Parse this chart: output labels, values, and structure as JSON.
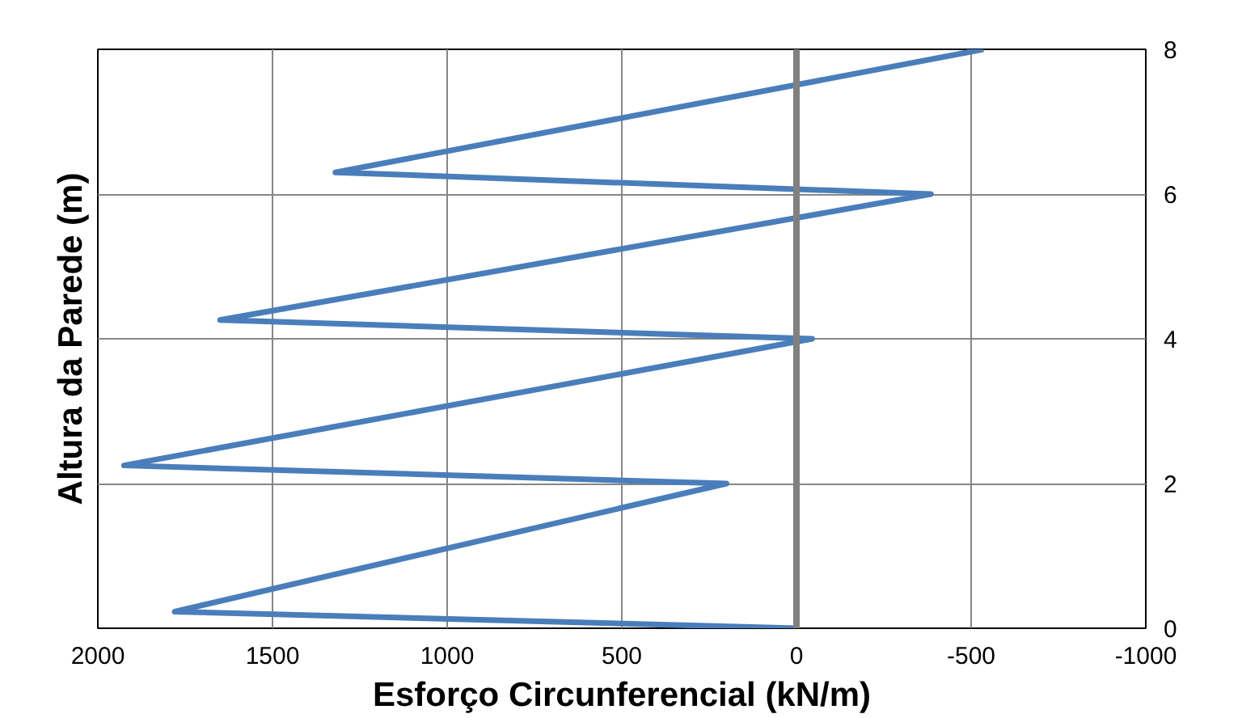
{
  "chart_data": {
    "type": "line",
    "xlabel": "Esforço Circunferencial (kN/m)",
    "ylabel": "Altura da Parede (m)",
    "x": [
      0,
      1780,
      200,
      1925,
      -45,
      1650,
      -385,
      1320,
      -535
    ],
    "series": [
      {
        "color": "#4a7ebb",
        "values": [
          0,
          0.23,
          2,
          2.25,
          4,
          4.26,
          6,
          6.3,
          8
        ]
      }
    ],
    "xlim": [
      2000,
      -1000
    ],
    "xticks": [
      2000,
      1500,
      1000,
      500,
      0,
      -500,
      -1000
    ],
    "ylim": [
      0,
      8
    ],
    "yticks": [
      0,
      2,
      4,
      6,
      8
    ],
    "grid": true,
    "marker": "none",
    "line_style": "solid",
    "ref_lines": [
      {
        "axis": "x",
        "value": 0,
        "color": "#808080"
      }
    ]
  }
}
